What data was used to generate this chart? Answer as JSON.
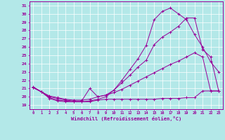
{
  "xlabel": "Windchill (Refroidissement éolien,°C)",
  "background_color": "#b3e8e8",
  "line_color": "#990099",
  "xlim": [
    -0.5,
    23.5
  ],
  "ylim": [
    18.5,
    31.5
  ],
  "xticks": [
    0,
    1,
    2,
    3,
    4,
    5,
    6,
    7,
    8,
    9,
    10,
    11,
    12,
    13,
    14,
    15,
    16,
    17,
    18,
    19,
    20,
    21,
    22,
    23
  ],
  "yticks": [
    19,
    20,
    21,
    22,
    23,
    24,
    25,
    26,
    27,
    28,
    29,
    30,
    31
  ],
  "series": [
    {
      "x": [
        0,
        1,
        2,
        3,
        4,
        5,
        6,
        7,
        8,
        9,
        10,
        11,
        12,
        13,
        14,
        15,
        16,
        17,
        18,
        19,
        20,
        21,
        22,
        23
      ],
      "y": [
        21.1,
        20.6,
        19.8,
        19.5,
        19.4,
        19.4,
        19.4,
        19.4,
        19.6,
        19.7,
        19.7,
        19.7,
        19.7,
        19.7,
        19.7,
        19.7,
        19.8,
        19.8,
        19.8,
        19.9,
        19.9,
        20.7,
        20.7,
        20.7
      ]
    },
    {
      "x": [
        0,
        1,
        2,
        3,
        4,
        5,
        6,
        7,
        8,
        9,
        10,
        11,
        12,
        13,
        14,
        15,
        16,
        17,
        18,
        19,
        20,
        21,
        22,
        23
      ],
      "y": [
        21.1,
        20.6,
        20.1,
        19.9,
        19.7,
        19.6,
        19.6,
        19.7,
        20.0,
        20.2,
        20.5,
        20.9,
        21.4,
        21.9,
        22.4,
        22.9,
        23.4,
        23.9,
        24.3,
        24.8,
        25.3,
        24.8,
        20.7,
        20.7
      ]
    },
    {
      "x": [
        0,
        1,
        2,
        3,
        4,
        5,
        6,
        7,
        8,
        9,
        10,
        11,
        12,
        13,
        14,
        15,
        16,
        17,
        18,
        19,
        20,
        21,
        22,
        23
      ],
      "y": [
        21.1,
        20.6,
        20.0,
        19.8,
        19.6,
        19.5,
        19.5,
        21.0,
        20.0,
        20.2,
        20.8,
        21.7,
        22.6,
        23.6,
        24.4,
        26.3,
        27.2,
        27.8,
        28.5,
        29.5,
        29.5,
        25.7,
        24.8,
        20.7
      ]
    },
    {
      "x": [
        0,
        1,
        2,
        3,
        4,
        5,
        6,
        7,
        8,
        9,
        10,
        11,
        12,
        13,
        14,
        15,
        16,
        17,
        18,
        19,
        20,
        21,
        22,
        23
      ],
      "y": [
        21.2,
        20.6,
        19.9,
        19.6,
        19.5,
        19.4,
        19.4,
        19.5,
        19.7,
        20.0,
        20.8,
        22.0,
        23.3,
        24.6,
        26.2,
        29.3,
        30.3,
        30.7,
        30.0,
        29.3,
        27.5,
        26.0,
        24.2,
        23.0
      ]
    }
  ]
}
